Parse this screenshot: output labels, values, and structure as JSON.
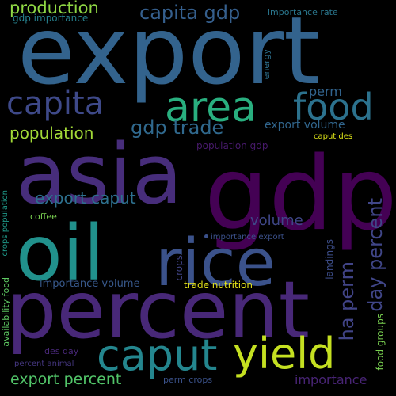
{
  "words": [
    {
      "text": "export",
      "color": "#33638d"
    },
    {
      "text": "gdp",
      "color": "#440154"
    },
    {
      "text": "asia",
      "color": "#472d7b"
    },
    {
      "text": "oil",
      "color": "#21918c"
    },
    {
      "text": "percent",
      "color": "#482878"
    },
    {
      "text": "rice",
      "color": "#3b528b"
    },
    {
      "text": "area",
      "color": "#29af7f"
    },
    {
      "text": "food",
      "color": "#2c728e"
    },
    {
      "text": "capita",
      "color": "#3e4989"
    },
    {
      "text": "caput",
      "color": "#24868e"
    },
    {
      "text": "yield",
      "color": "#c5e021"
    },
    {
      "text": "capita gdp",
      "color": "#355f8d"
    },
    {
      "text": "gdp trade",
      "color": "#30698e"
    },
    {
      "text": "production",
      "color": "#8fd744"
    },
    {
      "text": "population",
      "color": "#a2da37"
    },
    {
      "text": "export caput",
      "color": "#2d708e"
    },
    {
      "text": "day percent",
      "color": "#404688"
    },
    {
      "text": "ha perm",
      "color": "#414487"
    },
    {
      "text": "export percent",
      "color": "#52c569"
    },
    {
      "text": "volume",
      "color": "#3f4788"
    },
    {
      "text": "export volume",
      "color": "#31668e"
    },
    {
      "text": "importance",
      "color": "#482475"
    },
    {
      "text": "perm",
      "color": "#32648e"
    },
    {
      "text": "gdp importance",
      "color": "#26818e"
    },
    {
      "text": "importance rate",
      "color": "#2a778e"
    },
    {
      "text": "population gdp",
      "color": "#481a6c"
    },
    {
      "text": "caput des",
      "color": "#dde318"
    },
    {
      "text": "importance export",
      "color": "#3b518b"
    },
    {
      "text": "importance volume",
      "color": "#38598c"
    },
    {
      "text": "trade nutrition",
      "color": "#e5e419"
    },
    {
      "text": "crops",
      "color": "#414487"
    },
    {
      "text": "landings",
      "color": "#3d4e8a"
    },
    {
      "text": "energy",
      "color": "#2d708e"
    },
    {
      "text": "crops population",
      "color": "#1f9a8a"
    },
    {
      "text": "coffee",
      "color": "#7ad151"
    },
    {
      "text": "availability food",
      "color": "#5ec962"
    },
    {
      "text": "food groups",
      "color": "#7ad151"
    },
    {
      "text": "des day",
      "color": "#482878"
    },
    {
      "text": "percent animal",
      "color": "#453781"
    },
    {
      "text": "perm crops",
      "color": "#3b528b"
    }
  ]
}
